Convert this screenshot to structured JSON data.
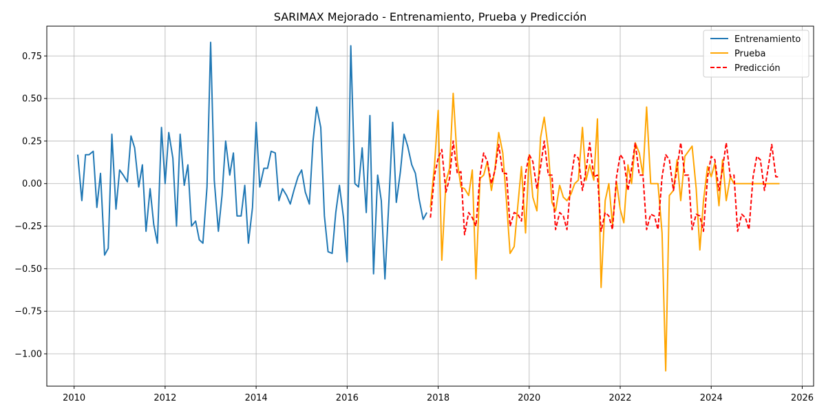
{
  "chart_data": {
    "type": "line",
    "title": "SARIMAX Mejorado - Entrenamiento, Prueba y Predicción",
    "xlabel": "",
    "ylabel": "",
    "xlim": [
      2009.4,
      2026.25
    ],
    "ylim": [
      -1.19,
      0.925
    ],
    "x_ticks": [
      2010,
      2012,
      2014,
      2016,
      2018,
      2020,
      2022,
      2024,
      2026
    ],
    "y_ticks": [
      -1.0,
      -0.75,
      -0.5,
      -0.25,
      0.0,
      0.25,
      0.5,
      0.75
    ],
    "y_tick_labels": [
      "−1.00",
      "−0.75",
      "−0.50",
      "−0.25",
      "0.00",
      "0.25",
      "0.50",
      "0.75"
    ],
    "grid": true,
    "legend_position": "top-right",
    "series": [
      {
        "name": "Entrenamiento",
        "color": "#1f77b4",
        "dash": "solid",
        "points": [
          [
            2010.08,
            0.17
          ],
          [
            2010.17,
            -0.1
          ],
          [
            2010.25,
            0.17
          ],
          [
            2010.33,
            0.17
          ],
          [
            2010.42,
            0.19
          ],
          [
            2010.5,
            -0.14
          ],
          [
            2010.58,
            0.06
          ],
          [
            2010.67,
            -0.42
          ],
          [
            2010.75,
            -0.38
          ],
          [
            2010.83,
            0.29
          ],
          [
            2010.92,
            -0.15
          ],
          [
            2011.0,
            0.08
          ],
          [
            2011.08,
            0.05
          ],
          [
            2011.17,
            0.01
          ],
          [
            2011.25,
            0.28
          ],
          [
            2011.33,
            0.21
          ],
          [
            2011.42,
            -0.02
          ],
          [
            2011.5,
            0.11
          ],
          [
            2011.58,
            -0.28
          ],
          [
            2011.67,
            -0.03
          ],
          [
            2011.75,
            -0.24
          ],
          [
            2011.83,
            -0.35
          ],
          [
            2011.92,
            0.33
          ],
          [
            2012.0,
            0.0
          ],
          [
            2012.08,
            0.3
          ],
          [
            2012.17,
            0.15
          ],
          [
            2012.25,
            -0.25
          ],
          [
            2012.33,
            0.29
          ],
          [
            2012.42,
            -0.01
          ],
          [
            2012.5,
            0.11
          ],
          [
            2012.58,
            -0.25
          ],
          [
            2012.67,
            -0.22
          ],
          [
            2012.75,
            -0.33
          ],
          [
            2012.83,
            -0.35
          ],
          [
            2012.92,
            -0.02
          ],
          [
            2013.0,
            0.83
          ],
          [
            2013.08,
            0.02
          ],
          [
            2013.17,
            -0.28
          ],
          [
            2013.25,
            -0.07
          ],
          [
            2013.33,
            0.25
          ],
          [
            2013.42,
            0.05
          ],
          [
            2013.5,
            0.18
          ],
          [
            2013.58,
            -0.19
          ],
          [
            2013.67,
            -0.19
          ],
          [
            2013.75,
            -0.01
          ],
          [
            2013.83,
            -0.35
          ],
          [
            2013.92,
            -0.14
          ],
          [
            2014.0,
            0.36
          ],
          [
            2014.08,
            -0.02
          ],
          [
            2014.17,
            0.09
          ],
          [
            2014.25,
            0.09
          ],
          [
            2014.33,
            0.19
          ],
          [
            2014.42,
            0.18
          ],
          [
            2014.5,
            -0.1
          ],
          [
            2014.58,
            -0.03
          ],
          [
            2014.67,
            -0.07
          ],
          [
            2014.75,
            -0.12
          ],
          [
            2014.83,
            -0.04
          ],
          [
            2014.92,
            0.04
          ],
          [
            2015.0,
            0.08
          ],
          [
            2015.08,
            -0.05
          ],
          [
            2015.17,
            -0.12
          ],
          [
            2015.25,
            0.25
          ],
          [
            2015.33,
            0.45
          ],
          [
            2015.42,
            0.33
          ],
          [
            2015.5,
            -0.19
          ],
          [
            2015.58,
            -0.4
          ],
          [
            2015.67,
            -0.41
          ],
          [
            2015.75,
            -0.17
          ],
          [
            2015.83,
            -0.01
          ],
          [
            2015.92,
            -0.2
          ],
          [
            2016.0,
            -0.46
          ],
          [
            2016.08,
            0.81
          ],
          [
            2016.17,
            0.0
          ],
          [
            2016.25,
            -0.02
          ],
          [
            2016.33,
            0.21
          ],
          [
            2016.42,
            -0.17
          ],
          [
            2016.5,
            0.4
          ],
          [
            2016.58,
            -0.53
          ],
          [
            2016.67,
            0.05
          ],
          [
            2016.75,
            -0.1
          ],
          [
            2016.83,
            -0.56
          ],
          [
            2016.92,
            -0.09
          ],
          [
            2017.0,
            0.36
          ],
          [
            2017.08,
            -0.11
          ],
          [
            2017.17,
            0.07
          ],
          [
            2017.25,
            0.29
          ],
          [
            2017.33,
            0.22
          ],
          [
            2017.42,
            0.11
          ],
          [
            2017.5,
            0.06
          ],
          [
            2017.58,
            -0.09
          ],
          [
            2017.67,
            -0.21
          ],
          [
            2017.75,
            -0.17
          ]
        ]
      },
      {
        "name": "Prueba",
        "color": "#ffa500",
        "dash": "solid",
        "points": [
          [
            2017.83,
            -0.14
          ],
          [
            2017.92,
            0.11
          ],
          [
            2018.0,
            0.43
          ],
          [
            2018.08,
            -0.45
          ],
          [
            2018.17,
            0.01
          ],
          [
            2018.25,
            0.09
          ],
          [
            2018.33,
            0.53
          ],
          [
            2018.42,
            0.13
          ],
          [
            2018.5,
            -0.02
          ],
          [
            2018.58,
            -0.03
          ],
          [
            2018.67,
            -0.07
          ],
          [
            2018.75,
            0.08
          ],
          [
            2018.83,
            -0.56
          ],
          [
            2018.92,
            0.03
          ],
          [
            2019.0,
            0.05
          ],
          [
            2019.08,
            0.13
          ],
          [
            2019.17,
            -0.04
          ],
          [
            2019.25,
            0.09
          ],
          [
            2019.33,
            0.3
          ],
          [
            2019.42,
            0.18
          ],
          [
            2019.5,
            -0.1
          ],
          [
            2019.58,
            -0.41
          ],
          [
            2019.67,
            -0.37
          ],
          [
            2019.75,
            -0.13
          ],
          [
            2019.83,
            0.1
          ],
          [
            2019.92,
            -0.29
          ],
          [
            2020.0,
            0.17
          ],
          [
            2020.08,
            -0.08
          ],
          [
            2020.17,
            -0.16
          ],
          [
            2020.25,
            0.27
          ],
          [
            2020.33,
            0.39
          ],
          [
            2020.42,
            0.2
          ],
          [
            2020.5,
            -0.11
          ],
          [
            2020.58,
            -0.16
          ],
          [
            2020.67,
            -0.01
          ],
          [
            2020.75,
            -0.08
          ],
          [
            2020.83,
            -0.1
          ],
          [
            2020.92,
            -0.06
          ],
          [
            2021.0,
            0.0
          ],
          [
            2021.08,
            0.02
          ],
          [
            2021.17,
            0.33
          ],
          [
            2021.25,
            0.02
          ],
          [
            2021.33,
            0.11
          ],
          [
            2021.42,
            0.02
          ],
          [
            2021.5,
            0.38
          ],
          [
            2021.58,
            -0.61
          ],
          [
            2021.67,
            -0.1
          ],
          [
            2021.75,
            0.0
          ],
          [
            2021.83,
            -0.24
          ],
          [
            2021.92,
            0.01
          ],
          [
            2022.0,
            -0.15
          ],
          [
            2022.08,
            -0.23
          ],
          [
            2022.17,
            0.11
          ],
          [
            2022.25,
            0.0
          ],
          [
            2022.33,
            0.24
          ],
          [
            2022.42,
            0.18
          ],
          [
            2022.5,
            0.05
          ],
          [
            2022.58,
            0.45
          ],
          [
            2022.67,
            0.0
          ],
          [
            2022.75,
            0.0
          ],
          [
            2022.83,
            0.0
          ],
          [
            2022.92,
            -0.29
          ],
          [
            2023.0,
            -1.1
          ],
          [
            2023.08,
            -0.07
          ],
          [
            2023.17,
            -0.04
          ],
          [
            2023.25,
            0.14
          ],
          [
            2023.33,
            -0.1
          ],
          [
            2023.42,
            0.16
          ],
          [
            2023.5,
            0.19
          ],
          [
            2023.58,
            0.22
          ],
          [
            2023.67,
            -0.03
          ],
          [
            2023.75,
            -0.39
          ],
          [
            2023.83,
            -0.1
          ],
          [
            2023.92,
            0.1
          ],
          [
            2024.0,
            0.04
          ],
          [
            2024.08,
            0.12
          ],
          [
            2024.17,
            -0.13
          ],
          [
            2024.25,
            0.14
          ],
          [
            2024.33,
            -0.1
          ],
          [
            2024.42,
            0.04
          ],
          [
            2024.5,
            0.0
          ],
          [
            2024.67,
            0.0
          ],
          [
            2024.83,
            0.0
          ],
          [
            2025.0,
            0.0
          ],
          [
            2025.17,
            0.0
          ],
          [
            2025.33,
            0.0
          ],
          [
            2025.5,
            0.0
          ]
        ]
      },
      {
        "name": "Predicción",
        "color": "#ff0000",
        "dash": "dashed",
        "points": [
          [
            2017.83,
            -0.2
          ],
          [
            2017.92,
            0.05
          ],
          [
            2018.0,
            0.15
          ],
          [
            2018.08,
            0.2
          ],
          [
            2018.17,
            -0.05
          ],
          [
            2018.25,
            0.03
          ],
          [
            2018.33,
            0.25
          ],
          [
            2018.42,
            0.06
          ],
          [
            2018.5,
            0.07
          ],
          [
            2018.58,
            -0.3
          ],
          [
            2018.67,
            -0.17
          ],
          [
            2018.75,
            -0.2
          ],
          [
            2018.83,
            -0.25
          ],
          [
            2018.92,
            0.05
          ],
          [
            2019.0,
            0.18
          ],
          [
            2019.08,
            0.13
          ],
          [
            2019.17,
            0.0
          ],
          [
            2019.25,
            0.08
          ],
          [
            2019.33,
            0.23
          ],
          [
            2019.42,
            0.06
          ],
          [
            2019.5,
            0.06
          ],
          [
            2019.58,
            -0.25
          ],
          [
            2019.67,
            -0.17
          ],
          [
            2019.75,
            -0.18
          ],
          [
            2019.83,
            -0.22
          ],
          [
            2019.92,
            0.06
          ],
          [
            2020.0,
            0.17
          ],
          [
            2020.08,
            0.13
          ],
          [
            2020.17,
            -0.03
          ],
          [
            2020.25,
            0.1
          ],
          [
            2020.33,
            0.25
          ],
          [
            2020.42,
            0.05
          ],
          [
            2020.5,
            0.05
          ],
          [
            2020.58,
            -0.27
          ],
          [
            2020.67,
            -0.17
          ],
          [
            2020.75,
            -0.19
          ],
          [
            2020.83,
            -0.27
          ],
          [
            2020.92,
            0.03
          ],
          [
            2021.0,
            0.17
          ],
          [
            2021.08,
            0.15
          ],
          [
            2021.17,
            -0.04
          ],
          [
            2021.25,
            0.08
          ],
          [
            2021.33,
            0.24
          ],
          [
            2021.42,
            0.04
          ],
          [
            2021.5,
            0.05
          ],
          [
            2021.58,
            -0.28
          ],
          [
            2021.67,
            -0.17
          ],
          [
            2021.75,
            -0.19
          ],
          [
            2021.83,
            -0.27
          ],
          [
            2021.92,
            0.04
          ],
          [
            2022.0,
            0.17
          ],
          [
            2022.08,
            0.14
          ],
          [
            2022.17,
            -0.04
          ],
          [
            2022.25,
            0.09
          ],
          [
            2022.33,
            0.24
          ],
          [
            2022.42,
            0.05
          ],
          [
            2022.5,
            0.05
          ],
          [
            2022.58,
            -0.27
          ],
          [
            2022.67,
            -0.18
          ],
          [
            2022.75,
            -0.19
          ],
          [
            2022.83,
            -0.27
          ],
          [
            2022.92,
            0.04
          ],
          [
            2023.0,
            0.17
          ],
          [
            2023.08,
            0.14
          ],
          [
            2023.17,
            -0.04
          ],
          [
            2023.25,
            0.09
          ],
          [
            2023.33,
            0.24
          ],
          [
            2023.42,
            0.05
          ],
          [
            2023.5,
            0.05
          ],
          [
            2023.58,
            -0.27
          ],
          [
            2023.67,
            -0.18
          ],
          [
            2023.75,
            -0.19
          ],
          [
            2023.83,
            -0.28
          ],
          [
            2023.92,
            0.04
          ],
          [
            2024.0,
            0.16
          ],
          [
            2024.08,
            0.14
          ],
          [
            2024.17,
            -0.04
          ],
          [
            2024.25,
            0.09
          ],
          [
            2024.33,
            0.24
          ],
          [
            2024.42,
            0.04
          ],
          [
            2024.5,
            0.05
          ],
          [
            2024.58,
            -0.28
          ],
          [
            2024.67,
            -0.18
          ],
          [
            2024.75,
            -0.2
          ],
          [
            2024.83,
            -0.27
          ],
          [
            2024.92,
            0.04
          ],
          [
            2025.0,
            0.16
          ],
          [
            2025.08,
            0.14
          ],
          [
            2025.17,
            -0.04
          ],
          [
            2025.25,
            0.09
          ],
          [
            2025.33,
            0.23
          ],
          [
            2025.42,
            0.04
          ],
          [
            2025.5,
            0.04
          ]
        ]
      }
    ]
  }
}
